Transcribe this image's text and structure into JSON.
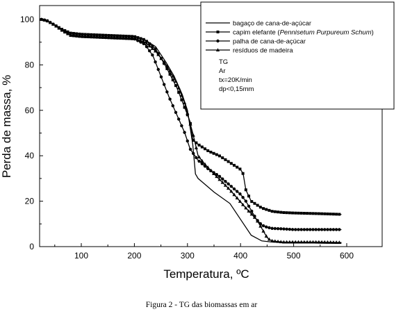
{
  "caption": "Figura 2 - TG das biomassas em ar",
  "chart_data": {
    "type": "line",
    "title": "",
    "xlabel": "Temperatura, ºC",
    "ylabel": "Perda de massa, %",
    "xlim": [
      20,
      620
    ],
    "ylim": [
      0,
      105
    ],
    "xticks": [
      "100",
      "200",
      "300",
      "400",
      "500",
      "600"
    ],
    "yticks": [
      "0",
      "20",
      "40",
      "60",
      "80",
      "100"
    ],
    "legend_position": "top-right",
    "legend_notes": [
      "TG",
      "Ar",
      "tx=20K/min",
      "dp<0,15mm"
    ],
    "series": [
      {
        "name": "bagaço de cana-de-açúcar",
        "name_italic": "",
        "name_suffix": "",
        "marker": "none",
        "x": [
          25,
          35,
          50,
          65,
          80,
          100,
          150,
          200,
          220,
          240,
          260,
          275,
          290,
          300,
          310,
          315,
          320,
          330,
          350,
          380,
          400,
          420,
          440,
          460,
          480,
          500,
          550,
          590
        ],
        "y": [
          100,
          99.5,
          97.5,
          95,
          94,
          93.5,
          93,
          92.5,
          91,
          88,
          81,
          75,
          67,
          60,
          45,
          32,
          30,
          28,
          24,
          19,
          12,
          5,
          2.5,
          2,
          2,
          1.8,
          1.5,
          1.5
        ]
      },
      {
        "name": "capim elefante (",
        "name_italic": "Pennisetum Purpureum Schum",
        "name_suffix": ")",
        "marker": "square",
        "x": [
          25,
          35,
          50,
          65,
          80,
          100,
          150,
          200,
          220,
          240,
          260,
          280,
          295,
          305,
          310,
          320,
          340,
          360,
          380,
          400,
          405,
          410,
          420,
          440,
          460,
          480,
          500,
          550,
          590
        ],
        "y": [
          100,
          99.5,
          97.5,
          95.5,
          94,
          93.5,
          93,
          92.5,
          91,
          87,
          79,
          70,
          61,
          55,
          47,
          45,
          42,
          40,
          37,
          34,
          32,
          25,
          20,
          17,
          15.5,
          15,
          14.8,
          14.5,
          14.2
        ]
      },
      {
        "name": "palha de cana-de-açúcar",
        "name_italic": "",
        "name_suffix": "",
        "marker": "circle",
        "x": [
          25,
          35,
          50,
          65,
          80,
          100,
          150,
          200,
          220,
          235,
          250,
          265,
          280,
          295,
          305,
          320,
          340,
          360,
          380,
          400,
          410,
          420,
          430,
          440,
          450,
          460,
          480,
          500,
          550,
          590
        ],
        "y": [
          100,
          99.5,
          97.5,
          95,
          93,
          92.5,
          92,
          91.5,
          89,
          84,
          75,
          66,
          58,
          50,
          43,
          38,
          34,
          31,
          27,
          23,
          20,
          16,
          12,
          9.5,
          8.5,
          8,
          7.8,
          7.5,
          7.5,
          7.5
        ]
      },
      {
        "name": "resíduos de madeira",
        "name_italic": "",
        "name_suffix": "",
        "marker": "triangle",
        "x": [
          25,
          35,
          50,
          65,
          80,
          100,
          150,
          200,
          220,
          240,
          260,
          280,
          295,
          310,
          315,
          320,
          330,
          350,
          380,
          410,
          430,
          440,
          445,
          450,
          455,
          460,
          480,
          500,
          550,
          590
        ],
        "y": [
          100,
          99.5,
          97.5,
          95,
          93,
          92.5,
          92,
          91.5,
          90,
          86,
          80,
          72,
          63,
          50,
          45,
          40,
          37,
          32,
          25,
          17,
          12,
          8,
          6,
          4,
          3,
          2.5,
          2,
          2,
          2,
          1.8
        ]
      }
    ]
  }
}
